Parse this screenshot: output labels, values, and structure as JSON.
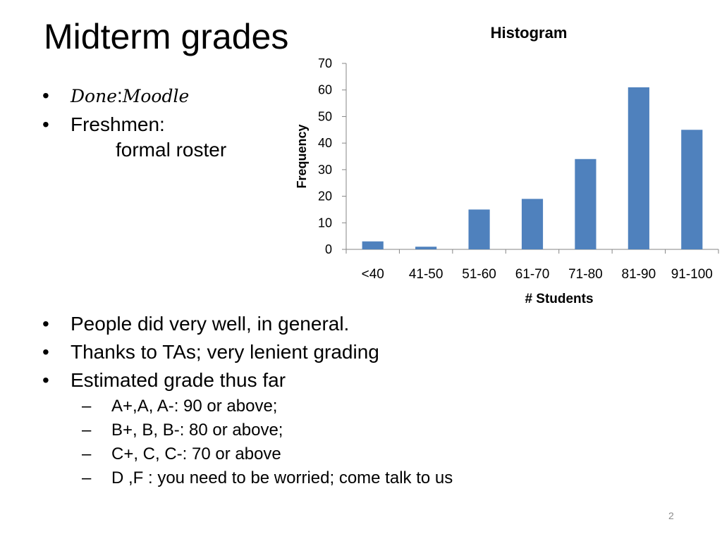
{
  "slide": {
    "title": "Midterm grades",
    "page_number": "2"
  },
  "bullets_top": [
    {
      "math": [
        "Done",
        ":",
        "Moodle"
      ]
    },
    {
      "text": "Freshmen:",
      "continuation": "formal roster"
    }
  ],
  "bullets_bottom": [
    "People did very well, in general.",
    "Thanks to TAs;  very lenient grading",
    "Estimated grade thus far"
  ],
  "sub_bullets": [
    "A+,A, A-: 90 or above;",
    "B+, B, B-: 80 or above;",
    "C+, C, C-: 70 or above",
    "D ,F : you need to be worried; come talk to us"
  ],
  "colors": {
    "bar": "#4f81bd",
    "axis": "#868686",
    "page_number": "#8c8c8c"
  },
  "chart_data": {
    "type": "bar",
    "title": "Histogram",
    "xlabel": "# Students",
    "ylabel": "Frequency",
    "categories": [
      "<40",
      "41-50",
      "51-60",
      "61-70",
      "71-80",
      "81-90",
      "91-100"
    ],
    "values": [
      3,
      1,
      15,
      19,
      34,
      61,
      45
    ],
    "ylim": [
      0,
      70
    ],
    "yticks": [
      0,
      10,
      20,
      30,
      40,
      50,
      60,
      70
    ],
    "grid": false,
    "legend": "none"
  }
}
